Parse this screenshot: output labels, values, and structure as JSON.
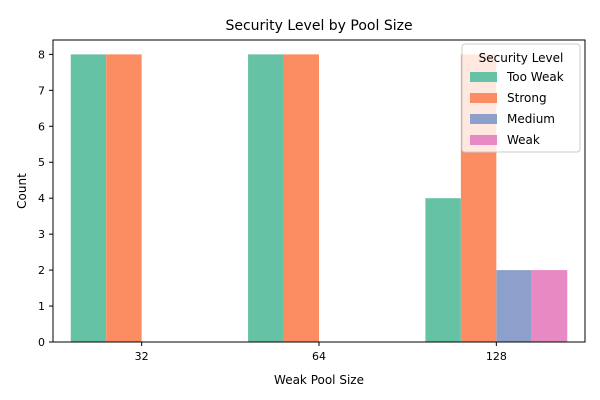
{
  "chart_data": {
    "type": "bar",
    "title": "Security Level by Pool Size",
    "xlabel": "Weak Pool Size",
    "ylabel": "Count",
    "categories": [
      "32",
      "64",
      "128"
    ],
    "ylim": [
      0,
      8.4
    ],
    "yticks": [
      "0",
      "1",
      "2",
      "3",
      "4",
      "5",
      "6",
      "7",
      "8"
    ],
    "grid": false,
    "legend_title": "Security Level",
    "legend_position": "top-right",
    "series": [
      {
        "name": "Too Weak",
        "color": "#66c2a5",
        "values": [
          8,
          8,
          4
        ]
      },
      {
        "name": "Strong",
        "color": "#fc8d62",
        "values": [
          8,
          8,
          8
        ]
      },
      {
        "name": "Medium",
        "color": "#8da0cb",
        "values": [
          0,
          0,
          2
        ]
      },
      {
        "name": "Weak",
        "color": "#e78ac3",
        "values": [
          0,
          0,
          2
        ]
      }
    ]
  }
}
